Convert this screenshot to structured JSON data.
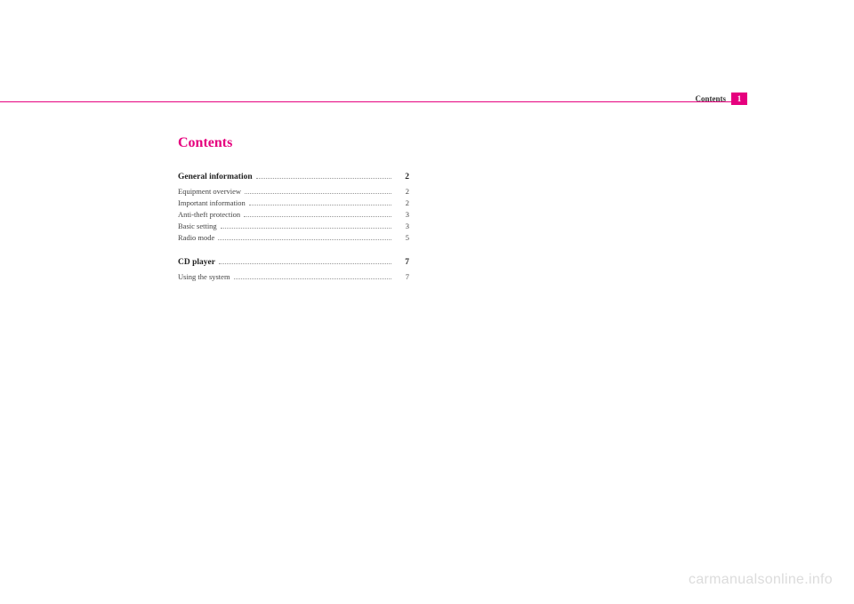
{
  "header": {
    "tab_label": "Contents",
    "tab_number": "1"
  },
  "title": "Contents",
  "sections": [
    {
      "heading": {
        "label": "General information",
        "page": "2"
      },
      "items": [
        {
          "label": "Equipment overview",
          "page": "2"
        },
        {
          "label": "Important information",
          "page": "2"
        },
        {
          "label": "Anti-theft protection",
          "page": "3"
        },
        {
          "label": "Basic setting",
          "page": "3"
        },
        {
          "label": "Radio mode",
          "page": "5"
        }
      ]
    },
    {
      "heading": {
        "label": "CD player",
        "page": "7"
      },
      "items": [
        {
          "label": "Using the system",
          "page": "7"
        }
      ]
    }
  ],
  "watermark": "carmanualsonline.info"
}
